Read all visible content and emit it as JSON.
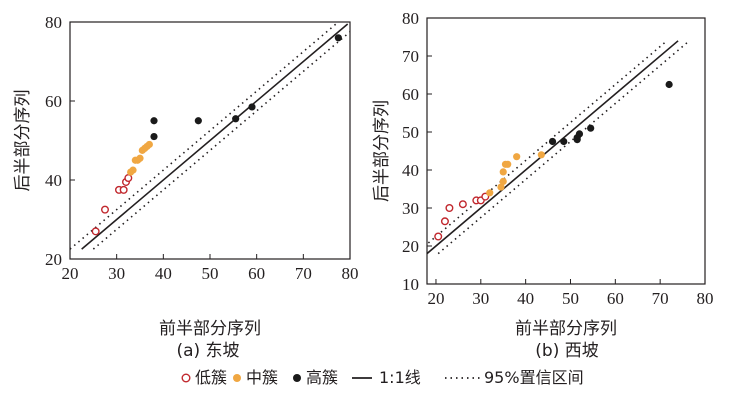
{
  "chart_data": [
    {
      "type": "scatter",
      "caption": "(a) 东坡",
      "xlabel": "前半部分序列",
      "ylabel": "后半部分序列",
      "xlim": [
        20,
        80
      ],
      "ylim": [
        20,
        80
      ],
      "xticks": [
        20,
        30,
        40,
        50,
        60,
        70,
        80
      ],
      "yticks": [
        20,
        40,
        60,
        80
      ],
      "series": [
        {
          "name": "低簇",
          "color": "#c1272d",
          "marker": "open-circle",
          "points": [
            [
              25.5,
              27
            ],
            [
              27.5,
              32.5
            ],
            [
              30.5,
              37.5
            ],
            [
              31.5,
              37.5
            ],
            [
              32,
              39.5
            ],
            [
              32.5,
              40.5
            ]
          ]
        },
        {
          "name": "中簇",
          "color": "#f0a742",
          "marker": "filled-circle",
          "points": [
            [
              33,
              42
            ],
            [
              33.5,
              42.5
            ],
            [
              34,
              45
            ],
            [
              34.5,
              45
            ],
            [
              35,
              45.5
            ],
            [
              35.5,
              47.5
            ],
            [
              36,
              48
            ],
            [
              36.5,
              48.5
            ],
            [
              37,
              49
            ]
          ]
        },
        {
          "name": "高簇",
          "color": "#1a1a1a",
          "marker": "filled-circle",
          "points": [
            [
              38,
              51
            ],
            [
              38,
              55
            ],
            [
              47.5,
              55
            ],
            [
              55.5,
              55.5
            ],
            [
              59,
              58.5
            ],
            [
              77.5,
              76
            ]
          ]
        }
      ],
      "line_1to1": {
        "name": "1:1线",
        "x": [
          22.5,
          79.5
        ]
      },
      "ci_95": {
        "name": "95%置信区间",
        "offset": 2.5
      }
    },
    {
      "type": "scatter",
      "caption": "(b) 西坡",
      "xlabel": "前半部分序列",
      "ylabel": "后半部分序列",
      "xlim": [
        18,
        80
      ],
      "ylim": [
        10,
        80
      ],
      "xticks": [
        20,
        30,
        40,
        50,
        60,
        70,
        80
      ],
      "yticks": [
        10,
        20,
        30,
        40,
        50,
        60,
        70,
        80
      ],
      "series": [
        {
          "name": "低簇",
          "color": "#c1272d",
          "marker": "open-circle",
          "points": [
            [
              20.5,
              22.5
            ],
            [
              22,
              26.5
            ],
            [
              23,
              30
            ],
            [
              26,
              31
            ],
            [
              29,
              32
            ],
            [
              30,
              32
            ],
            [
              31,
              33
            ]
          ]
        },
        {
          "name": "中簇",
          "color": "#f0a742",
          "marker": "filled-circle",
          "points": [
            [
              32,
              34
            ],
            [
              34.5,
              35.5
            ],
            [
              35,
              37
            ],
            [
              35,
              39.5
            ],
            [
              35.5,
              41.5
            ],
            [
              36,
              41.5
            ],
            [
              38,
              43.5
            ],
            [
              43.5,
              44
            ]
          ]
        },
        {
          "name": "高簇",
          "color": "#1a1a1a",
          "marker": "filled-circle",
          "points": [
            [
              46,
              47.5
            ],
            [
              48.5,
              47.5
            ],
            [
              51.5,
              48
            ],
            [
              51.5,
              48.5
            ],
            [
              52,
              49.5
            ],
            [
              54.5,
              51
            ],
            [
              72,
              62.5
            ]
          ]
        }
      ],
      "line_1to1": {
        "name": "1:1线",
        "x": [
          18,
          74
        ]
      },
      "ci_95": {
        "name": "95%置信区间",
        "offset": 2.5
      }
    }
  ],
  "legend": {
    "items": [
      {
        "label": "低簇",
        "kind": "open-circle",
        "color": "#c1272d"
      },
      {
        "label": "中簇",
        "kind": "filled-circle",
        "color": "#f0a742"
      },
      {
        "label": "高簇",
        "kind": "filled-circle",
        "color": "#1a1a1a"
      },
      {
        "label": "1:1线",
        "kind": "solid-line",
        "color": "#231f20"
      },
      {
        "label": "95%置信区间",
        "kind": "dotted-line",
        "color": "#231f20"
      }
    ]
  }
}
